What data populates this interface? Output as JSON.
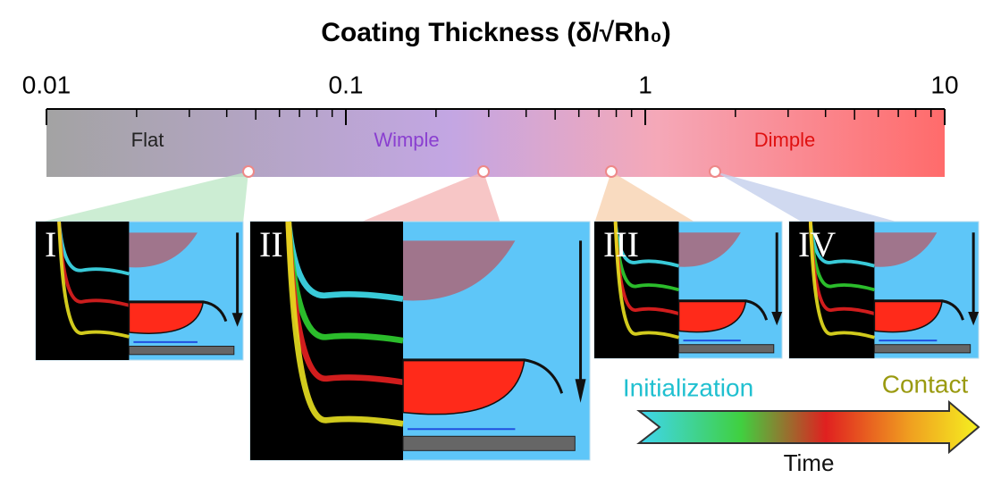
{
  "header": {
    "title": "Coating Thickness (δ/√Rh₀)"
  },
  "axis": {
    "ticks": [
      "0.01",
      "0.1",
      "1",
      "10"
    ]
  },
  "regions": [
    "Flat",
    "Wimple",
    "Dimple"
  ],
  "panels": [
    "I",
    "II",
    "III",
    "IV"
  ],
  "legend": {
    "start": "Initialization",
    "end": "Contact",
    "axis": "Time"
  }
}
